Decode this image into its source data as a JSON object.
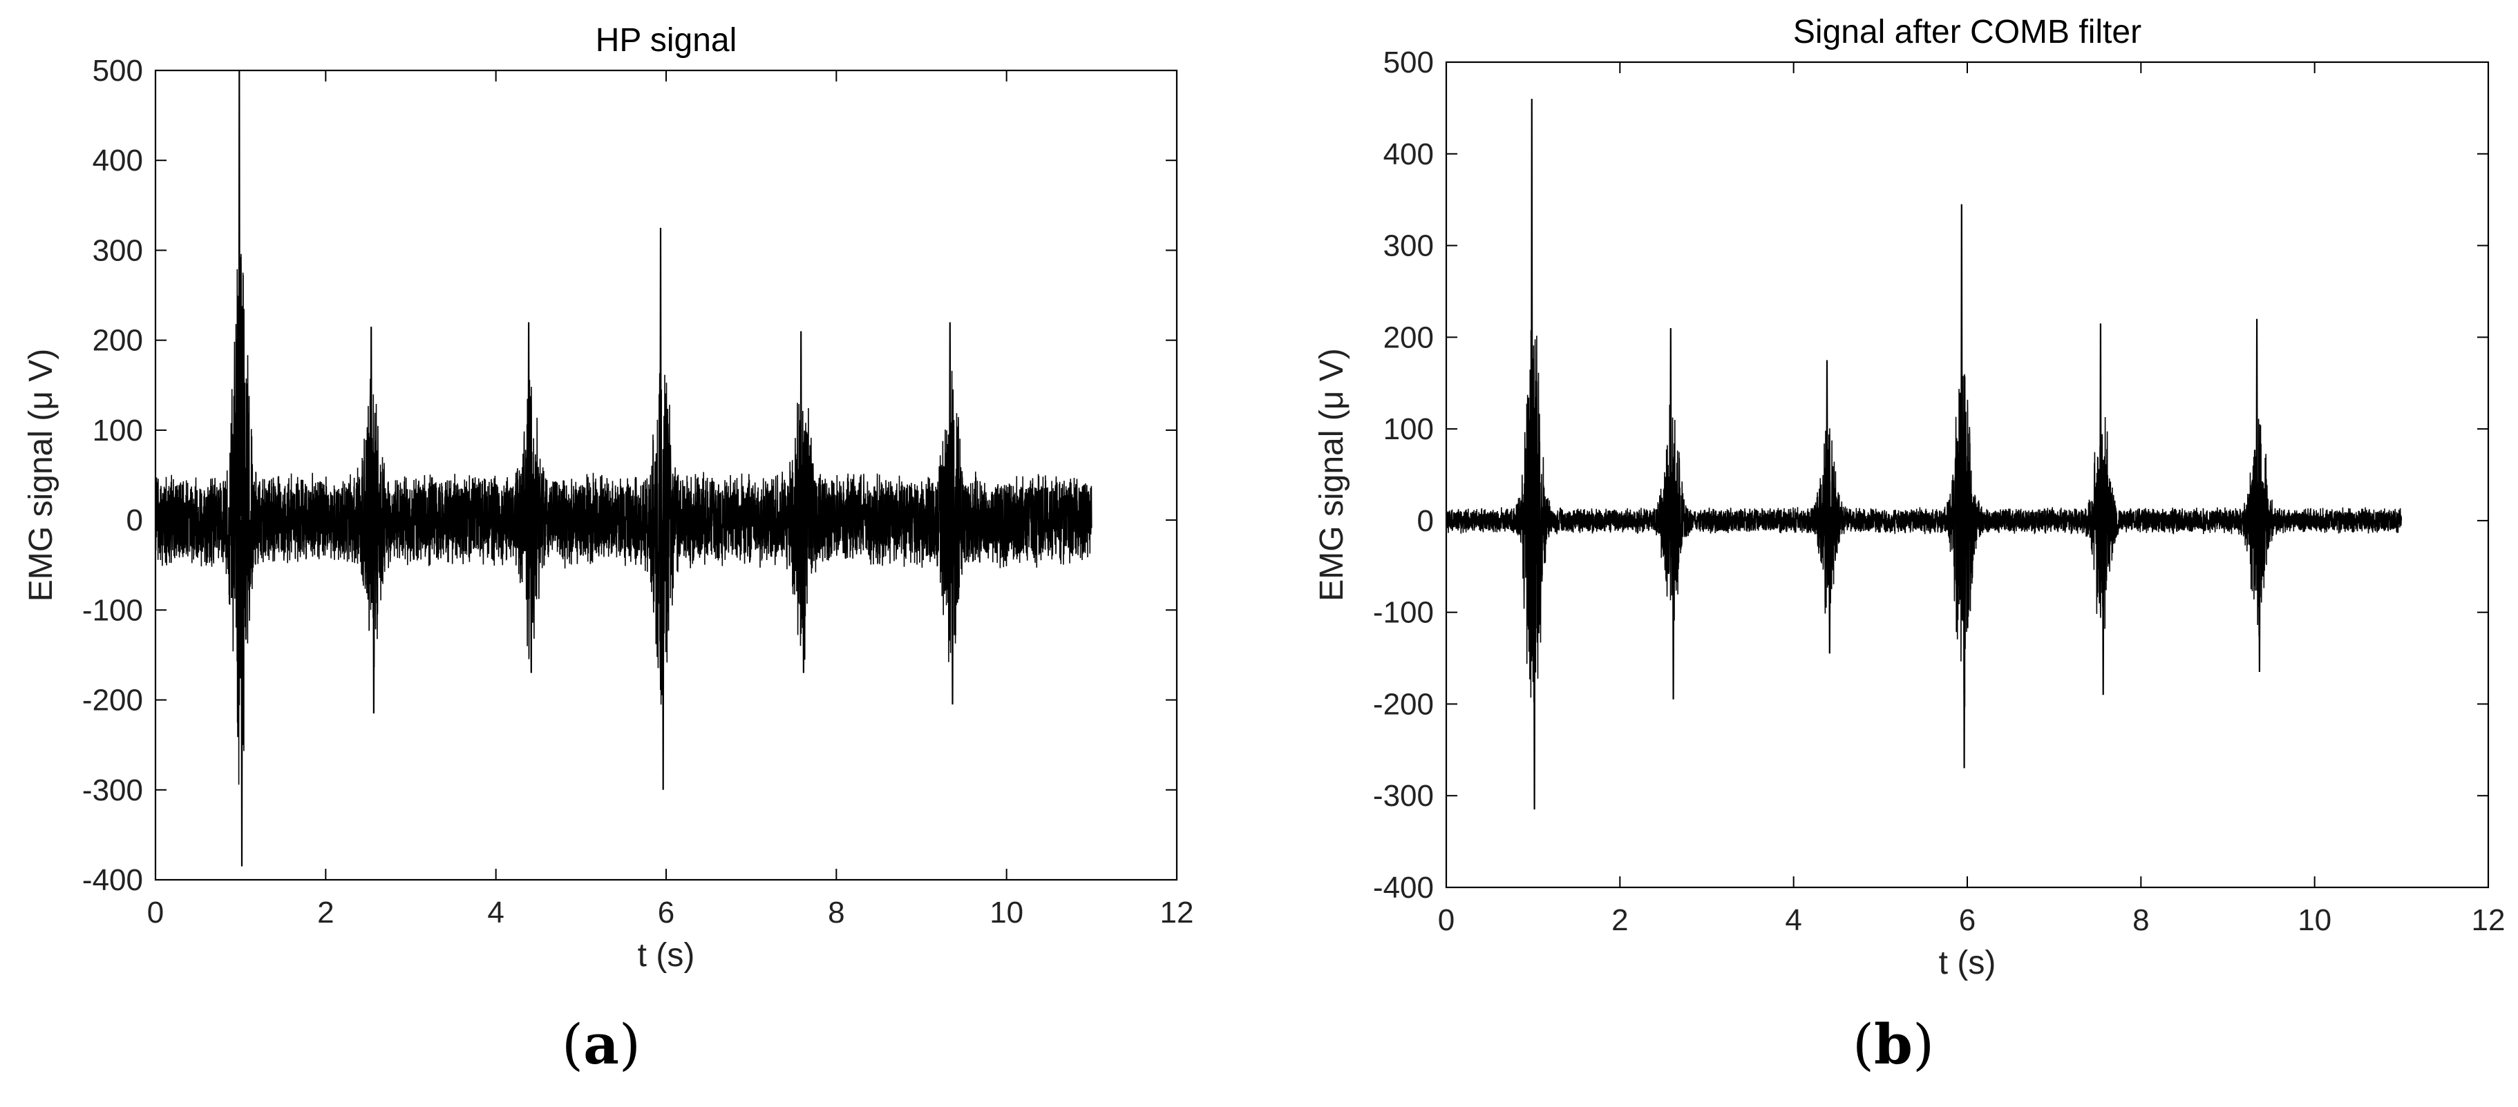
{
  "figure": {
    "caption_a_letter": "a",
    "caption_b_letter": "b",
    "caption_open": "(",
    "caption_close": ")"
  },
  "chart_data": [
    {
      "id": "a",
      "type": "line",
      "title": "HP signal",
      "xlabel": "t (s)",
      "ylabel": "EMG signal (μ V)",
      "xlim": [
        0,
        12
      ],
      "ylim": [
        -400,
        500
      ],
      "xticks": [
        0,
        2,
        4,
        6,
        8,
        10,
        12
      ],
      "yticks": [
        -400,
        -300,
        -200,
        -100,
        0,
        100,
        200,
        300,
        400,
        500
      ],
      "grid": false,
      "legend": "none",
      "line_color": "#000000",
      "series": [
        {
          "t_range": [
            0,
            11
          ],
          "baseline_amplitude": 55,
          "bursts": [
            {
              "t": 1.0,
              "max": 500,
              "min": -385
            },
            {
              "t": 2.55,
              "max": 215,
              "min": -215
            },
            {
              "t": 4.4,
              "max": 220,
              "min": -170
            },
            {
              "t": 5.95,
              "max": 325,
              "min": -300
            },
            {
              "t": 7.6,
              "max": 210,
              "min": -170
            },
            {
              "t": 9.35,
              "max": 220,
              "min": -205
            }
          ]
        }
      ]
    },
    {
      "id": "b",
      "type": "line",
      "title": "Signal after COMB filter",
      "xlabel": "t (s)",
      "ylabel": "EMG signal (μ V)",
      "xlim": [
        0,
        12
      ],
      "ylim": [
        -400,
        500
      ],
      "xticks": [
        0,
        2,
        4,
        6,
        8,
        10,
        12
      ],
      "yticks": [
        -400,
        -300,
        -200,
        -100,
        0,
        100,
        200,
        300,
        400,
        500
      ],
      "grid": false,
      "legend": "none",
      "line_color": "#000000",
      "series": [
        {
          "t_range": [
            0,
            11
          ],
          "baseline_amplitude": 15,
          "bursts": [
            {
              "t": 1.0,
              "max": 460,
              "min": -315
            },
            {
              "t": 2.6,
              "max": 210,
              "min": -195
            },
            {
              "t": 4.4,
              "max": 175,
              "min": -145
            },
            {
              "t": 5.95,
              "max": 345,
              "min": -270
            },
            {
              "t": 7.55,
              "max": 215,
              "min": -190
            },
            {
              "t": 9.35,
              "max": 220,
              "min": -165
            }
          ]
        }
      ]
    }
  ]
}
